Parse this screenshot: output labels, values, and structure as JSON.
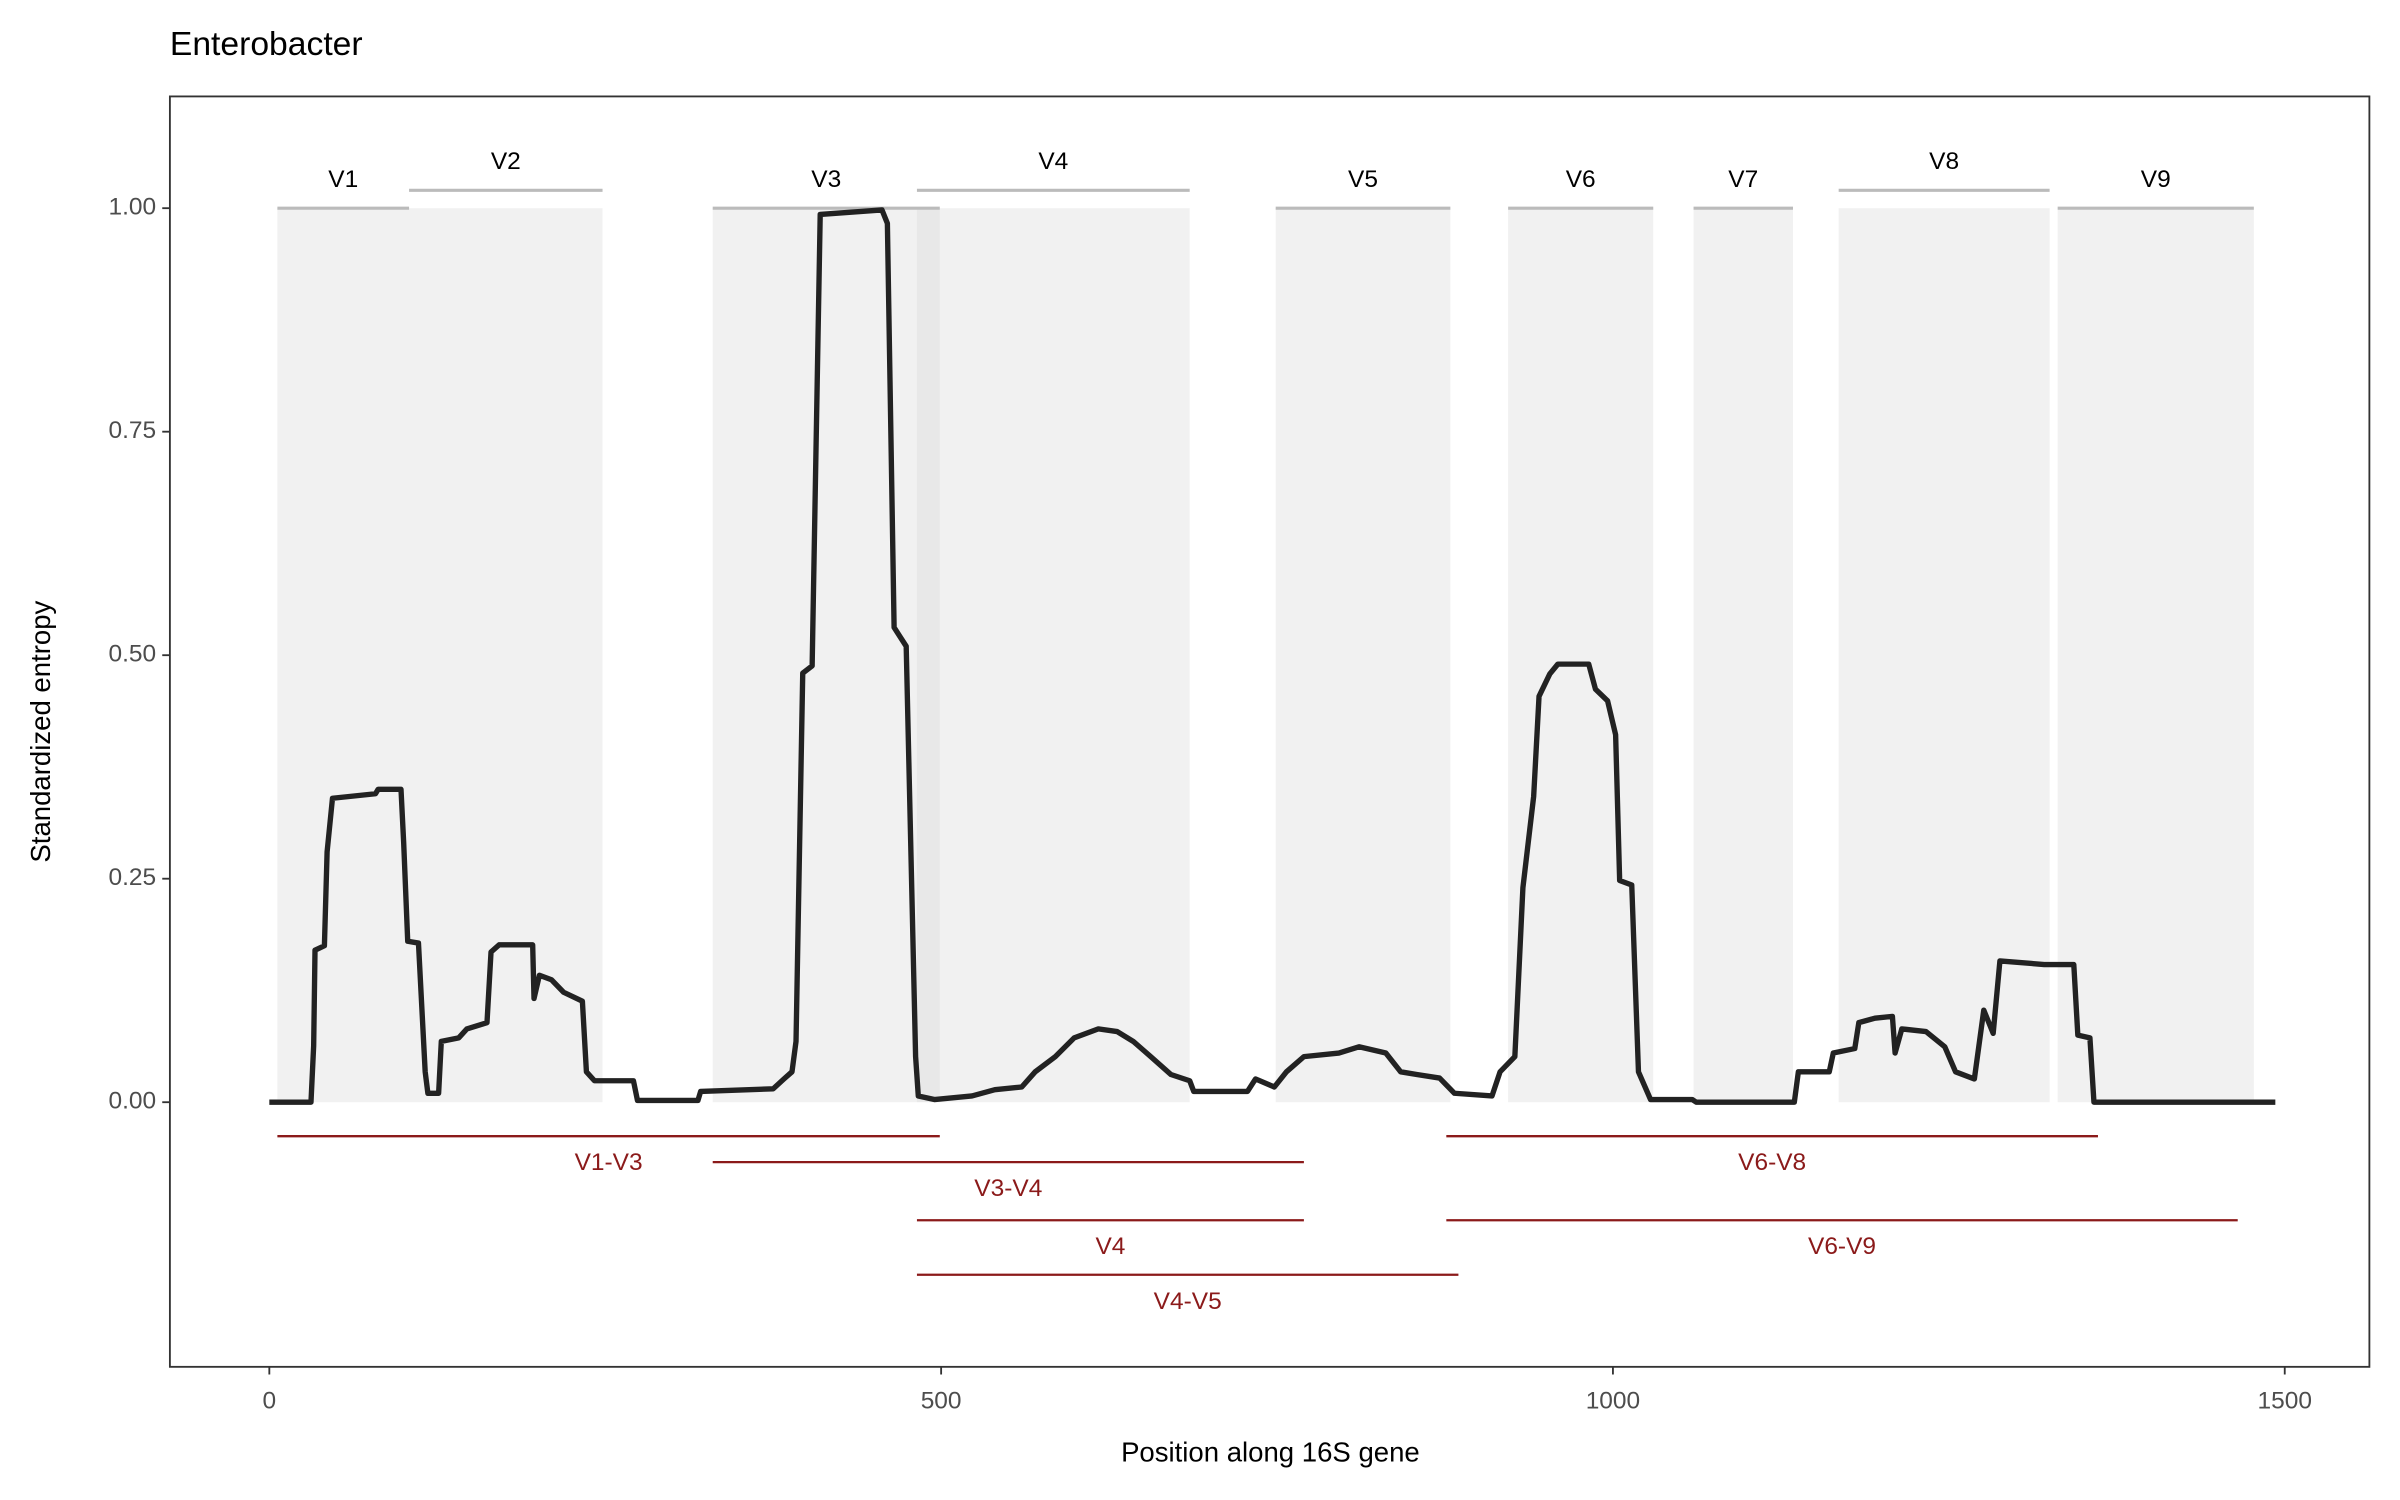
{
  "chart_data": {
    "type": "line",
    "title": "Enterobacter",
    "xlabel": "Position along 16S gene",
    "ylabel": "Standardized entropy",
    "xlim": [
      -74,
      1563
    ],
    "ylim": [
      -0.296,
      1.125
    ],
    "xticks": [
      0,
      500,
      1000,
      1500
    ],
    "yticks": [
      {
        "value": 0,
        "label": "0.00"
      },
      {
        "value": 0.25,
        "label": "0.25"
      },
      {
        "value": 0.5,
        "label": "0.50"
      },
      {
        "value": 0.75,
        "label": "0.75"
      },
      {
        "value": 1,
        "label": "1.00"
      }
    ],
    "x": [
      0,
      31,
      33,
      34,
      41,
      43,
      47,
      79,
      81,
      98,
      100,
      103,
      111,
      116,
      118,
      126,
      128,
      141,
      147,
      162,
      165,
      171,
      196,
      197,
      201,
      210,
      219,
      233,
      236,
      242,
      271,
      274,
      319,
      321,
      375,
      383,
      389,
      392,
      397,
      404,
      410,
      456,
      460,
      465,
      474,
      481,
      483,
      495,
      523,
      540,
      560,
      570,
      585,
      599,
      617,
      631,
      643,
      656,
      671,
      685,
      688,
      728,
      734,
      748,
      757,
      770,
      796,
      811,
      831,
      842,
      854,
      871,
      882,
      910,
      916,
      927,
      933,
      941,
      945,
      953,
      959,
      982,
      987,
      996,
      1002,
      1005,
      1014,
      1019,
      1028,
      1059,
      1062,
      1135,
      1138,
      1161,
      1164,
      1180,
      1183,
      1195,
      1208,
      1210,
      1215,
      1233,
      1247,
      1255,
      1269,
      1276,
      1283,
      1288,
      1321,
      1343,
      1346,
      1355,
      1358,
      1493
    ],
    "series": [
      {
        "color": "#222222",
        "values": [
          0,
          0,
          0.063,
          0.17,
          0.175,
          0.28,
          0.34,
          0.345,
          0.35,
          0.35,
          0.29,
          0.18,
          0.178,
          0.034,
          0.01,
          0.01,
          0.068,
          0.072,
          0.082,
          0.089,
          0.168,
          0.176,
          0.176,
          0.116,
          0.142,
          0.137,
          0.123,
          0.113,
          0.034,
          0.024,
          0.024,
          0.002,
          0.002,
          0.012,
          0.015,
          0.026,
          0.034,
          0.068,
          0.48,
          0.488,
          0.993,
          0.998,
          0.983,
          0.531,
          0.51,
          0.051,
          0.007,
          0.003,
          0.007,
          0.014,
          0.017,
          0.034,
          0.051,
          0.072,
          0.082,
          0.079,
          0.068,
          0.051,
          0.031,
          0.024,
          0.012,
          0.012,
          0.026,
          0.017,
          0.034,
          0.051,
          0.055,
          0.062,
          0.055,
          0.034,
          0.031,
          0.027,
          0.01,
          0.007,
          0.034,
          0.051,
          0.24,
          0.342,
          0.454,
          0.479,
          0.49,
          0.49,
          0.462,
          0.449,
          0.411,
          0.248,
          0.243,
          0.034,
          0.003,
          0.003,
          0,
          0,
          0.034,
          0.034,
          0.055,
          0.06,
          0.089,
          0.094,
          0.096,
          0.055,
          0.082,
          0.079,
          0.062,
          0.034,
          0.026,
          0.103,
          0.077,
          0.158,
          0.154,
          0.154,
          0.075,
          0.072,
          0,
          0
        ]
      }
    ],
    "regions": [
      {
        "name": "V1",
        "start": 6,
        "end": 104,
        "y": 1.0
      },
      {
        "name": "V2",
        "start": 104,
        "end": 248,
        "y": 1.02
      },
      {
        "name": "V3",
        "start": 330,
        "end": 499,
        "y": 1.0
      },
      {
        "name": "V4",
        "start": 482,
        "end": 685,
        "y": 1.02
      },
      {
        "name": "V5",
        "start": 749,
        "end": 879,
        "y": 1.0
      },
      {
        "name": "V6",
        "start": 922,
        "end": 1030,
        "y": 1.0
      },
      {
        "name": "V7",
        "start": 1060,
        "end": 1134,
        "y": 1.0
      },
      {
        "name": "V8",
        "start": 1168,
        "end": 1325,
        "y": 1.02
      },
      {
        "name": "V9",
        "start": 1331,
        "end": 1477,
        "y": 1.0
      }
    ],
    "region_color": "#bbbbbb",
    "amplicon_color": "#8b1a1a",
    "amplicons": [
      {
        "name": "V1-V3",
        "start": 6,
        "end": 499,
        "y": -0.038
      },
      {
        "name": "V3-V4",
        "start": 330,
        "end": 770,
        "y": -0.067
      },
      {
        "name": "V4",
        "start": 482,
        "end": 770,
        "y": -0.132
      },
      {
        "name": "V4-V5",
        "start": 482,
        "end": 885,
        "y": -0.193
      },
      {
        "name": "V6-V8",
        "start": 876,
        "end": 1361,
        "y": -0.038
      },
      {
        "name": "V6-V9",
        "start": 876,
        "end": 1465,
        "y": -0.132
      }
    ]
  }
}
